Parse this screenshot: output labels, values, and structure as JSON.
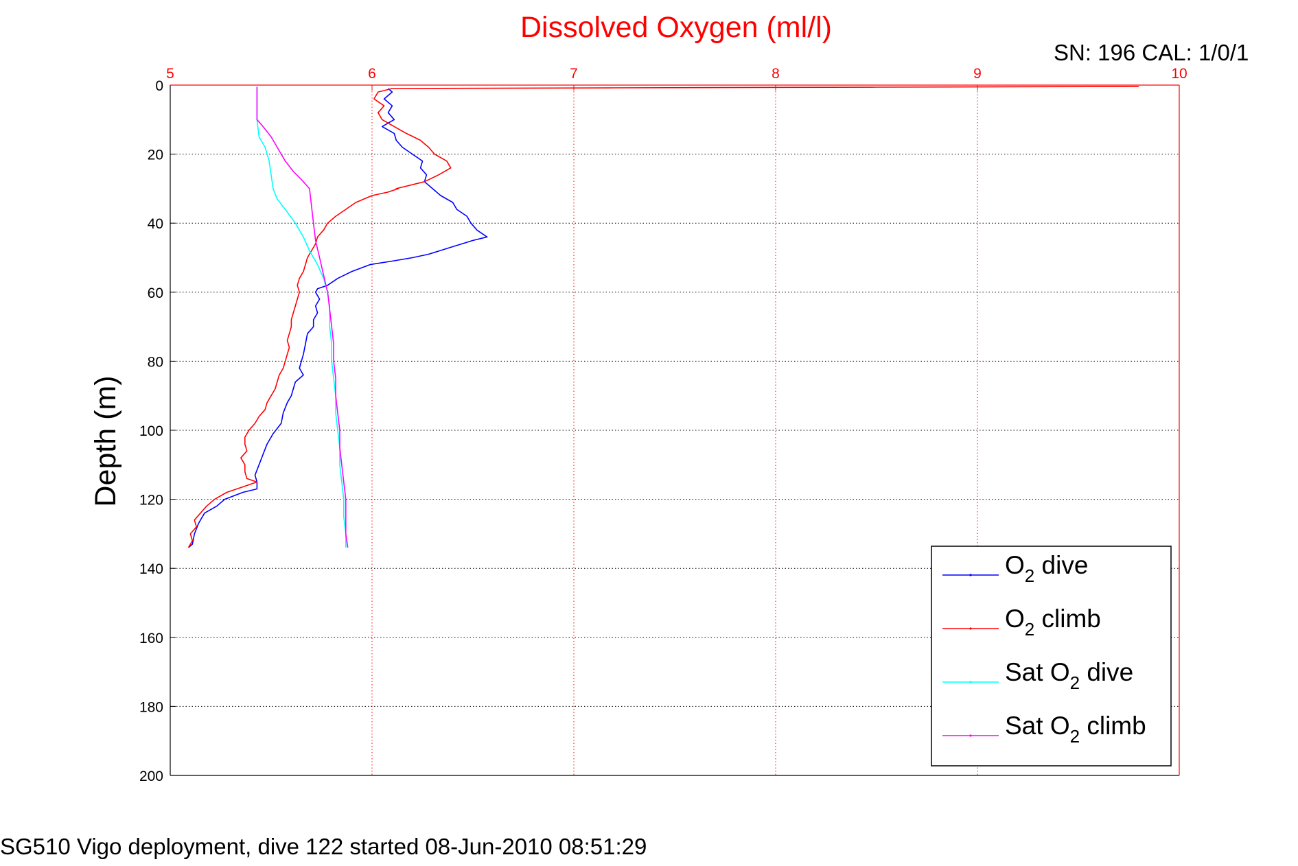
{
  "chart_data": {
    "type": "line",
    "title": "Dissolved Oxygen (ml/l)",
    "ylabel": "Depth (m)",
    "xlabel": "",
    "xlim": [
      5,
      10
    ],
    "ylim": [
      0,
      200
    ],
    "y_reversed": true,
    "x_axis_position": "top",
    "x_ticks": [
      "5",
      "6",
      "7",
      "8",
      "9",
      "10"
    ],
    "y_ticks": [
      "0",
      "20",
      "40",
      "60",
      "80",
      "100",
      "120",
      "140",
      "160",
      "180",
      "200"
    ],
    "grid": true,
    "legend_position": "bottom-right",
    "colors": {
      "title": "#ff0000",
      "xaxis": "#ff0000",
      "grid_x": "#ff0000",
      "grid_y": "#000000"
    },
    "series": [
      {
        "name": "O2 dive",
        "legend_main": "O",
        "legend_sub": "2",
        "legend_rest": " dive",
        "color": "#0000ff",
        "points": [
          [
            6.08,
            1
          ],
          [
            6.1,
            2
          ],
          [
            6.06,
            4
          ],
          [
            6.1,
            6
          ],
          [
            6.08,
            8
          ],
          [
            6.11,
            10
          ],
          [
            6.05,
            12
          ],
          [
            6.11,
            14
          ],
          [
            6.12,
            16
          ],
          [
            6.15,
            18
          ],
          [
            6.2,
            20
          ],
          [
            6.25,
            22
          ],
          [
            6.24,
            24
          ],
          [
            6.27,
            26
          ],
          [
            6.26,
            28
          ],
          [
            6.3,
            30
          ],
          [
            6.34,
            32
          ],
          [
            6.4,
            34
          ],
          [
            6.42,
            36
          ],
          [
            6.47,
            38
          ],
          [
            6.49,
            40
          ],
          [
            6.52,
            42
          ],
          [
            6.57,
            44
          ],
          [
            6.5,
            45
          ],
          [
            6.39,
            47
          ],
          [
            6.28,
            49
          ],
          [
            6.2,
            50
          ],
          [
            6.1,
            51
          ],
          [
            5.99,
            52
          ],
          [
            5.9,
            54
          ],
          [
            5.83,
            56
          ],
          [
            5.78,
            58
          ],
          [
            5.73,
            59
          ],
          [
            5.72,
            60
          ],
          [
            5.74,
            62
          ],
          [
            5.72,
            64
          ],
          [
            5.73,
            66
          ],
          [
            5.71,
            68
          ],
          [
            5.71,
            70
          ],
          [
            5.68,
            72
          ],
          [
            5.67,
            75
          ],
          [
            5.66,
            78
          ],
          [
            5.65,
            80
          ],
          [
            5.64,
            82
          ],
          [
            5.66,
            84
          ],
          [
            5.62,
            86
          ],
          [
            5.61,
            88
          ],
          [
            5.6,
            90
          ],
          [
            5.58,
            92
          ],
          [
            5.56,
            95
          ],
          [
            5.55,
            98
          ],
          [
            5.51,
            101
          ],
          [
            5.48,
            104
          ],
          [
            5.46,
            107
          ],
          [
            5.44,
            110
          ],
          [
            5.42,
            113
          ],
          [
            5.43,
            115
          ],
          [
            5.43,
            117
          ],
          [
            5.36,
            118
          ],
          [
            5.27,
            120
          ],
          [
            5.23,
            122
          ],
          [
            5.17,
            124
          ],
          [
            5.14,
            127
          ],
          [
            5.12,
            130
          ],
          [
            5.11,
            133
          ],
          [
            5.09,
            134
          ]
        ]
      },
      {
        "name": "O2 climb",
        "legend_main": "O",
        "legend_sub": "2",
        "legend_rest": " climb",
        "color": "#ff0000",
        "points": [
          [
            5.09,
            134
          ],
          [
            5.11,
            132
          ],
          [
            5.1,
            130
          ],
          [
            5.13,
            128
          ],
          [
            5.12,
            126
          ],
          [
            5.15,
            124
          ],
          [
            5.18,
            122
          ],
          [
            5.22,
            120
          ],
          [
            5.28,
            118
          ],
          [
            5.33,
            117
          ],
          [
            5.38,
            116
          ],
          [
            5.43,
            115
          ],
          [
            5.38,
            114
          ],
          [
            5.37,
            112
          ],
          [
            5.37,
            110
          ],
          [
            5.35,
            108
          ],
          [
            5.38,
            106
          ],
          [
            5.37,
            104
          ],
          [
            5.37,
            102
          ],
          [
            5.39,
            100
          ],
          [
            5.42,
            98
          ],
          [
            5.44,
            96
          ],
          [
            5.47,
            94
          ],
          [
            5.48,
            92
          ],
          [
            5.5,
            90
          ],
          [
            5.52,
            88
          ],
          [
            5.53,
            86
          ],
          [
            5.54,
            84
          ],
          [
            5.56,
            82
          ],
          [
            5.57,
            80
          ],
          [
            5.58,
            78
          ],
          [
            5.59,
            76
          ],
          [
            5.58,
            74
          ],
          [
            5.59,
            72
          ],
          [
            5.6,
            70
          ],
          [
            5.6,
            68
          ],
          [
            5.61,
            66
          ],
          [
            5.62,
            64
          ],
          [
            5.63,
            62
          ],
          [
            5.64,
            60
          ],
          [
            5.63,
            58
          ],
          [
            5.64,
            56
          ],
          [
            5.66,
            54
          ],
          [
            5.67,
            52
          ],
          [
            5.68,
            50
          ],
          [
            5.7,
            48
          ],
          [
            5.72,
            46
          ],
          [
            5.73,
            44
          ],
          [
            5.76,
            42
          ],
          [
            5.78,
            40
          ],
          [
            5.82,
            38
          ],
          [
            5.87,
            36
          ],
          [
            5.92,
            34
          ],
          [
            6,
            32
          ],
          [
            6.08,
            31
          ],
          [
            6.13,
            30
          ],
          [
            6.12,
            30
          ],
          [
            6.26,
            28
          ],
          [
            6.33,
            26
          ],
          [
            6.39,
            24
          ],
          [
            6.37,
            22
          ],
          [
            6.31,
            20
          ],
          [
            6.28,
            18
          ],
          [
            6.24,
            16
          ],
          [
            6.17,
            14
          ],
          [
            6.11,
            12
          ],
          [
            6.05,
            10
          ],
          [
            6.03,
            8
          ],
          [
            6.06,
            6
          ],
          [
            6.01,
            4
          ],
          [
            6.03,
            2
          ],
          [
            6.1,
            1
          ],
          [
            7.2,
            0.8
          ],
          [
            8.5,
            0.6
          ],
          [
            9.8,
            0.4
          ]
        ]
      },
      {
        "name": "Sat O2 dive",
        "legend_main": "Sat O",
        "legend_sub": "2",
        "legend_rest": " dive",
        "color": "#00ffff",
        "points": [
          [
            5.43,
            0.5
          ],
          [
            5.43,
            5
          ],
          [
            5.43,
            10
          ],
          [
            5.44,
            15
          ],
          [
            5.47,
            18
          ],
          [
            5.49,
            22
          ],
          [
            5.5,
            26
          ],
          [
            5.51,
            30
          ],
          [
            5.53,
            33
          ],
          [
            5.57,
            36
          ],
          [
            5.62,
            40
          ],
          [
            5.66,
            44
          ],
          [
            5.69,
            48
          ],
          [
            5.73,
            52
          ],
          [
            5.76,
            56
          ],
          [
            5.78,
            60
          ],
          [
            5.79,
            64
          ],
          [
            5.79,
            70
          ],
          [
            5.8,
            75
          ],
          [
            5.8,
            80
          ],
          [
            5.81,
            85
          ],
          [
            5.82,
            90
          ],
          [
            5.82,
            95
          ],
          [
            5.83,
            100
          ],
          [
            5.84,
            105
          ],
          [
            5.84,
            110
          ],
          [
            5.85,
            115
          ],
          [
            5.86,
            120
          ],
          [
            5.86,
            125
          ],
          [
            5.87,
            130
          ],
          [
            5.87,
            134
          ]
        ]
      },
      {
        "name": "Sat O2 climb",
        "legend_main": "Sat O",
        "legend_sub": "2",
        "legend_rest": " climb",
        "color": "#ff00ff",
        "points": [
          [
            5.43,
            0.5
          ],
          [
            5.43,
            5
          ],
          [
            5.43,
            10
          ],
          [
            5.46,
            12
          ],
          [
            5.5,
            15
          ],
          [
            5.53,
            18
          ],
          [
            5.57,
            22
          ],
          [
            5.61,
            25
          ],
          [
            5.66,
            28
          ],
          [
            5.69,
            30
          ],
          [
            5.7,
            35
          ],
          [
            5.71,
            40
          ],
          [
            5.72,
            45
          ],
          [
            5.74,
            50
          ],
          [
            5.76,
            55
          ],
          [
            5.78,
            60
          ],
          [
            5.79,
            65
          ],
          [
            5.8,
            70
          ],
          [
            5.81,
            75
          ],
          [
            5.81,
            80
          ],
          [
            5.82,
            85
          ],
          [
            5.82,
            90
          ],
          [
            5.83,
            95
          ],
          [
            5.84,
            100
          ],
          [
            5.84,
            105
          ],
          [
            5.85,
            110
          ],
          [
            5.86,
            115
          ],
          [
            5.87,
            120
          ],
          [
            5.87,
            125
          ],
          [
            5.87,
            130
          ],
          [
            5.88,
            134
          ]
        ]
      }
    ]
  },
  "header": {
    "sn": "SN: 196  CAL: 1/0/1"
  },
  "footer": {
    "caption": "SG510 Vigo deployment, dive 122 started 08-Jun-2010 08:51:29"
  }
}
